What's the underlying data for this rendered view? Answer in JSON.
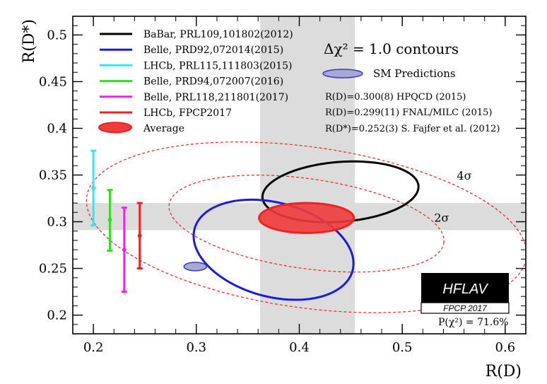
{
  "chart_data": {
    "type": "scatter",
    "xlabel": "R(D)",
    "ylabel": "R(D*)",
    "xlim": [
      0.18,
      0.62
    ],
    "ylim": [
      0.18,
      0.52
    ],
    "xticks": [
      {
        "v": 0.2,
        "label": "0.2"
      },
      {
        "v": 0.3,
        "label": "0.3"
      },
      {
        "v": 0.4,
        "label": "0.4"
      },
      {
        "v": 0.5,
        "label": "0.5"
      },
      {
        "v": 0.6,
        "label": "0.6"
      }
    ],
    "yticks": [
      {
        "v": 0.2,
        "label": "0.2"
      },
      {
        "v": 0.25,
        "label": "0.25"
      },
      {
        "v": 0.3,
        "label": "0.3"
      },
      {
        "v": 0.35,
        "label": "0.35"
      },
      {
        "v": 0.4,
        "label": "0.4"
      },
      {
        "v": 0.45,
        "label": "0.45"
      },
      {
        "v": 0.5,
        "label": "0.5"
      }
    ],
    "title": "Δχ² = 1.0 contours",
    "legend": [
      {
        "label": "BaBar, PRL109,101802(2012)",
        "color": "#000000",
        "kind": "line"
      },
      {
        "label": "Belle, PRD92,072014(2015)",
        "color": "#1a1ae6",
        "kind": "line"
      },
      {
        "label": "LHCb, PRL115,111803(2015)",
        "color": "#33e6f0",
        "kind": "line"
      },
      {
        "label": "Belle, PRD94,072007(2016)",
        "color": "#33dd22",
        "kind": "line"
      },
      {
        "label": "Belle, PRL118,211801(2017)",
        "color": "#ee22ee",
        "kind": "line"
      },
      {
        "label": "LHCb, FPCP2017",
        "color": "#ee2222",
        "kind": "line"
      },
      {
        "label": "Average",
        "color": "#ee2222",
        "kind": "fill"
      }
    ],
    "sm_legend": "SM Predictions",
    "sm_notes": [
      "R(D)=0.300(8) HPQCD (2015)",
      "R(D)=0.299(11) FNAL/MILC (2015)",
      "R(D*)=0.252(3) S. Fajfer et al. (2012)"
    ],
    "bands": {
      "rd_world_avg": {
        "x_range": [
          0.362,
          0.454
        ]
      },
      "rdstar_world_avg": {
        "y_range": [
          0.291,
          0.32
        ]
      }
    },
    "ellipses": [
      {
        "name": "BaBar",
        "cx": 0.44,
        "cy": 0.332,
        "rx": 0.076,
        "ry": 0.032,
        "angle_deg": 5,
        "color": "#000000"
      },
      {
        "name": "Belle 2015",
        "cx": 0.375,
        "cy": 0.27,
        "rx": 0.08,
        "ry": 0.05,
        "angle_deg": -18,
        "color": "#1a1ae6"
      },
      {
        "name": "Average",
        "cx": 0.407,
        "cy": 0.304,
        "rx": 0.046,
        "ry": 0.016,
        "angle_deg": 0,
        "color": "#ee2222",
        "fill": true
      },
      {
        "name": "SM Predictions",
        "cx": 0.299,
        "cy": 0.252,
        "rx": 0.011,
        "ry": 0.0045,
        "angle_deg": 0,
        "color": "#5555cc",
        "fill": true
      }
    ],
    "sigma_contours": [
      {
        "label": "2σ",
        "cx": 0.407,
        "cy": 0.298,
        "rx": 0.135,
        "ry": 0.048,
        "angle_deg": -9,
        "label_x": 0.531,
        "label_y": 0.3
      },
      {
        "label": "4σ",
        "cx": 0.407,
        "cy": 0.294,
        "rx": 0.216,
        "ry": 0.086,
        "angle_deg": -9,
        "label_x": 0.553,
        "label_y": 0.345
      }
    ],
    "error_bars": [
      {
        "name": "LHCb 2015",
        "x": 0.2,
        "y": 0.336,
        "lo": 0.296,
        "hi": 0.376,
        "color": "#33e6f0"
      },
      {
        "name": "Belle 2016",
        "x": 0.216,
        "y": 0.302,
        "lo": 0.269,
        "hi": 0.334,
        "color": "#33dd22"
      },
      {
        "name": "Belle 2017",
        "x": 0.23,
        "y": 0.27,
        "lo": 0.225,
        "hi": 0.315,
        "color": "#ee22ee"
      },
      {
        "name": "LHCb FPCP2017",
        "x": 0.245,
        "y": 0.285,
        "lo": 0.25,
        "hi": 0.32,
        "color": "#ee2222"
      }
    ]
  },
  "logo": {
    "main": "HFLAV",
    "sub": "FPCP 2017"
  },
  "pchi2": "P(χ²) = 71.6%"
}
